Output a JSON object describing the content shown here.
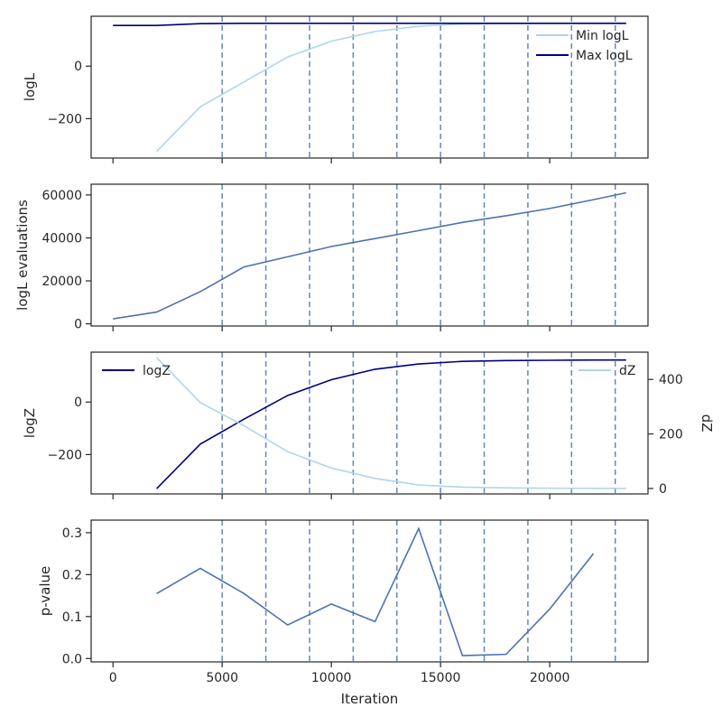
{
  "colors": {
    "light_blue": "#add8e6",
    "navy": "#000080",
    "steel_blue": "#4c72b0",
    "insertion_line": "#4c72b0",
    "axis": "#262626"
  },
  "shared": {
    "xlabel": "Iteration",
    "xlim": [
      -1000,
      24500
    ],
    "xticks": [
      0,
      5000,
      10000,
      15000,
      20000
    ],
    "xtick_labels": [
      "0",
      "5000",
      "10000",
      "15000",
      "20000"
    ],
    "vlines": [
      5000,
      7000,
      9000,
      11000,
      13000,
      15000,
      17000,
      19000,
      21000,
      23000
    ]
  },
  "chart_data": [
    {
      "type": "line",
      "ylabel": "logL",
      "ylim": [
        -350,
        190
      ],
      "yticks": [
        0,
        -200
      ],
      "ytick_labels": [
        "0",
        "−200"
      ],
      "legend_position": "top-right",
      "series": [
        {
          "name": "Min logL",
          "color": "light_blue",
          "x": [
            2000,
            4000,
            6000,
            8000,
            10000,
            12000,
            14000,
            16000,
            18000,
            20000,
            22000,
            23500
          ],
          "y": [
            -325,
            -155,
            -60,
            35,
            95,
            132,
            152,
            160,
            162,
            163,
            163,
            163
          ]
        },
        {
          "name": "Max logL",
          "color": "navy",
          "x": [
            0,
            2000,
            4000,
            6000,
            8000,
            10000,
            12000,
            14000,
            16000,
            18000,
            20000,
            22000,
            23500
          ],
          "y": [
            155,
            155,
            162,
            163,
            163,
            163,
            163,
            163,
            163,
            163,
            163,
            163,
            163
          ]
        }
      ]
    },
    {
      "type": "line",
      "ylabel": "logL evaluations",
      "ylim": [
        -1000,
        65000
      ],
      "yticks": [
        0,
        20000,
        40000,
        60000
      ],
      "ytick_labels": [
        "0",
        "20000",
        "40000",
        "60000"
      ],
      "series": [
        {
          "color": "steel_blue",
          "x": [
            0,
            2000,
            4000,
            6000,
            8000,
            10000,
            12000,
            14000,
            16000,
            18000,
            20000,
            22000,
            23500
          ],
          "y": [
            2300,
            5500,
            15000,
            26500,
            31200,
            36000,
            39700,
            43400,
            47200,
            50300,
            53700,
            57800,
            61000
          ]
        }
      ]
    },
    {
      "type": "line",
      "ylabel": "logZ",
      "ylim": [
        -350,
        190
      ],
      "yticks": [
        0,
        -200
      ],
      "ytick_labels": [
        "0",
        "−200"
      ],
      "y2label": "dZ",
      "y2lim": [
        -20,
        500
      ],
      "y2ticks": [
        0,
        200,
        400
      ],
      "y2tick_labels": [
        "0",
        "200",
        "400"
      ],
      "series": [
        {
          "name": "logZ",
          "axis": "left",
          "legend_position": "top-left",
          "color": "navy",
          "x": [
            2000,
            4000,
            6000,
            8000,
            10000,
            12000,
            14000,
            16000,
            18000,
            20000,
            22000,
            23500
          ],
          "y": [
            -330,
            -160,
            -65,
            25,
            85,
            125,
            145,
            155,
            158,
            159,
            160,
            160
          ]
        },
        {
          "name": "dZ",
          "axis": "right",
          "legend_position": "top-right",
          "color": "light_blue",
          "x": [
            2000,
            4000,
            6000,
            8000,
            10000,
            12000,
            14000,
            16000,
            18000,
            20000,
            22000,
            23500
          ],
          "y": [
            480,
            315,
            230,
            135,
            75,
            37,
            13,
            5,
            2,
            1,
            0.5,
            0.3
          ]
        }
      ]
    },
    {
      "type": "line",
      "ylabel": "p-value",
      "xlabel": "Iteration",
      "ylim": [
        -0.008,
        0.33
      ],
      "yticks": [
        0.0,
        0.1,
        0.2,
        0.3
      ],
      "ytick_labels": [
        "0.0",
        "0.1",
        "0.2",
        "0.3"
      ],
      "series": [
        {
          "color": "steel_blue",
          "x": [
            2000,
            4000,
            6000,
            8000,
            10000,
            12000,
            14000,
            16000,
            18000,
            20000,
            22000
          ],
          "y": [
            0.155,
            0.215,
            0.155,
            0.08,
            0.13,
            0.088,
            0.31,
            0.007,
            0.01,
            0.118,
            0.25
          ]
        }
      ]
    }
  ]
}
